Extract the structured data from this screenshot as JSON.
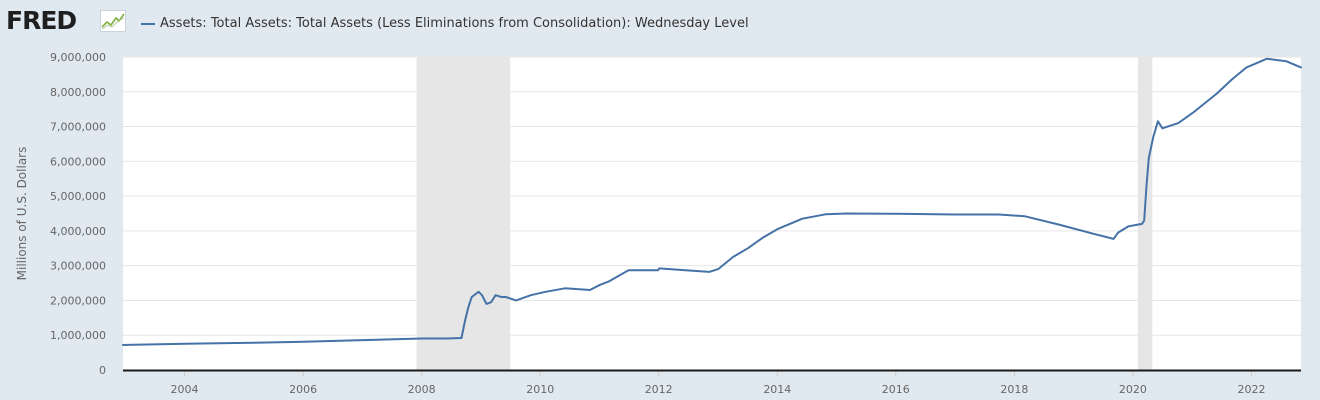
{
  "header": {
    "logo_text": "FRED",
    "logo_icon": "trend-graph-icon"
  },
  "colors": {
    "background": "#e1e9f0",
    "plot_background": "#ffffff",
    "series": "#4572a7",
    "recession": "#e6e6e6",
    "grid": "#e6e6e6"
  },
  "chart_data": {
    "type": "line",
    "xlabel": "",
    "ylabel": "Millions of U.S. Dollars",
    "xlim": [
      "2002-12-18",
      "2022-11-02"
    ],
    "ylim": [
      0,
      9000000
    ],
    "grid": true,
    "legend_position": "top-left",
    "x_tick_labels": [
      "2004",
      "2006",
      "2008",
      "2010",
      "2012",
      "2014",
      "2016",
      "2018",
      "2020",
      "2022"
    ],
    "y_tick_labels": [
      "0",
      "1,000,000",
      "2,000,000",
      "3,000,000",
      "4,000,000",
      "5,000,000",
      "6,000,000",
      "7,000,000",
      "8,000,000",
      "9,000,000"
    ],
    "recessions": [
      {
        "start": "2007-12-01",
        "end": "2009-06-30"
      },
      {
        "start": "2020-02-01",
        "end": "2020-04-30"
      }
    ],
    "series": [
      {
        "name": "Assets: Total Assets: Total Assets (Less Eliminations from Consolidation): Wednesday Level",
        "points": [
          [
            "2002-12-18",
            720000
          ],
          [
            "2004-01-07",
            755000
          ],
          [
            "2005-01-05",
            780000
          ],
          [
            "2006-01-04",
            810000
          ],
          [
            "2007-01-03",
            860000
          ],
          [
            "2008-01-02",
            905000
          ],
          [
            "2008-06-04",
            905000
          ],
          [
            "2008-09-03",
            920000
          ],
          [
            "2008-09-24",
            1400000
          ],
          [
            "2008-10-15",
            1800000
          ],
          [
            "2008-11-05",
            2100000
          ],
          [
            "2008-12-17",
            2250000
          ],
          [
            "2009-01-07",
            2150000
          ],
          [
            "2009-02-04",
            1900000
          ],
          [
            "2009-03-04",
            1950000
          ],
          [
            "2009-04-01",
            2150000
          ],
          [
            "2009-05-06",
            2100000
          ],
          [
            "2009-06-03",
            2100000
          ],
          [
            "2009-08-05",
            2000000
          ],
          [
            "2009-11-04",
            2150000
          ],
          [
            "2010-02-03",
            2250000
          ],
          [
            "2010-06-02",
            2350000
          ],
          [
            "2010-11-03",
            2300000
          ],
          [
            "2011-01-05",
            2450000
          ],
          [
            "2011-03-02",
            2550000
          ],
          [
            "2011-06-29",
            2870000
          ],
          [
            "2011-12-28",
            2870000
          ],
          [
            "2012-01-04",
            2920000
          ],
          [
            "2012-05-02",
            2880000
          ],
          [
            "2012-11-07",
            2820000
          ],
          [
            "2013-01-02",
            2900000
          ],
          [
            "2013-04-03",
            3250000
          ],
          [
            "2013-07-03",
            3500000
          ],
          [
            "2013-10-02",
            3800000
          ],
          [
            "2014-01-01",
            4050000
          ],
          [
            "2014-06-04",
            4350000
          ],
          [
            "2014-10-29",
            4480000
          ],
          [
            "2015-03-04",
            4500000
          ],
          [
            "2016-01-06",
            4490000
          ],
          [
            "2017-01-04",
            4470000
          ],
          [
            "2017-09-27",
            4470000
          ],
          [
            "2018-03-07",
            4420000
          ],
          [
            "2018-10-03",
            4180000
          ],
          [
            "2019-05-01",
            3920000
          ],
          [
            "2019-09-04",
            3770000
          ],
          [
            "2019-10-02",
            3950000
          ],
          [
            "2019-12-04",
            4130000
          ],
          [
            "2020-02-26",
            4200000
          ],
          [
            "2020-03-11",
            4300000
          ],
          [
            "2020-03-25",
            5300000
          ],
          [
            "2020-04-08",
            6100000
          ],
          [
            "2020-05-06",
            6700000
          ],
          [
            "2020-06-03",
            7150000
          ],
          [
            "2020-07-01",
            6950000
          ],
          [
            "2020-10-07",
            7100000
          ],
          [
            "2021-01-06",
            7400000
          ],
          [
            "2021-06-02",
            7950000
          ],
          [
            "2021-09-01",
            8350000
          ],
          [
            "2021-12-01",
            8700000
          ],
          [
            "2022-04-06",
            8950000
          ],
          [
            "2022-08-03",
            8880000
          ],
          [
            "2022-11-02",
            8700000
          ]
        ]
      }
    ]
  }
}
